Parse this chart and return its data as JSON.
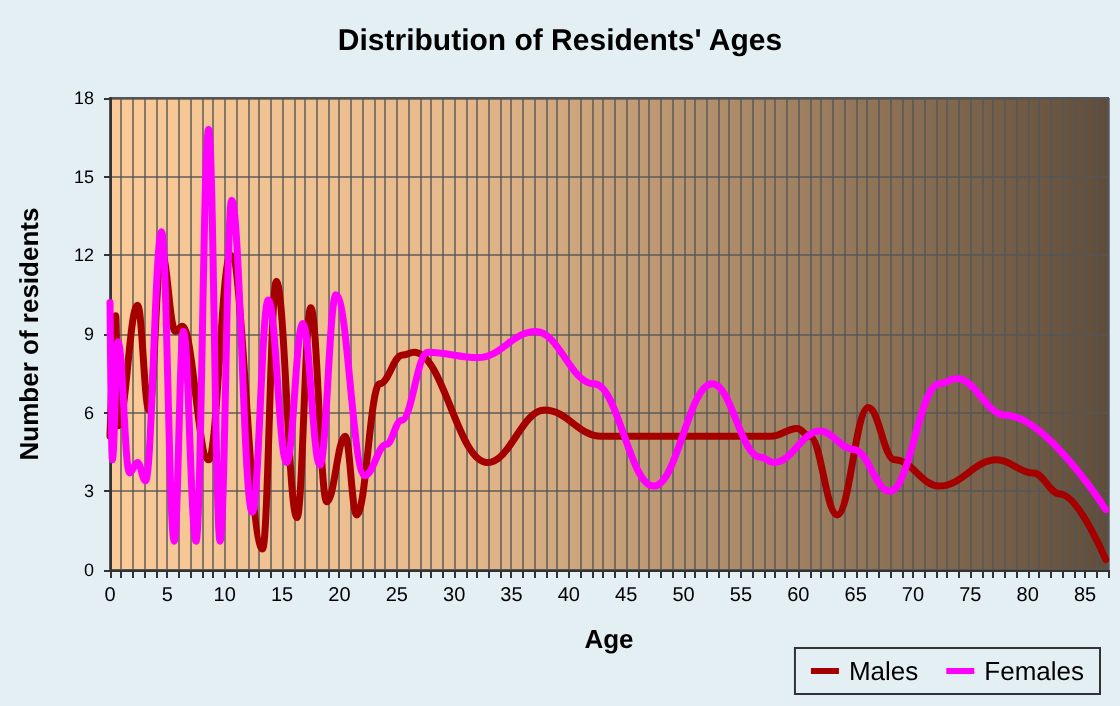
{
  "chart_data": {
    "type": "line",
    "title": "Distribution of Residents' Ages",
    "xlabel": "Age",
    "ylabel": "Number of residents",
    "xlim": [
      0,
      87
    ],
    "xticks": [
      0,
      5,
      10,
      15,
      20,
      25,
      30,
      35,
      40,
      45,
      50,
      55,
      60,
      65,
      70,
      75,
      80,
      85
    ],
    "ylim": [
      0,
      18
    ],
    "yticks": [
      0,
      3,
      6,
      9,
      12,
      15,
      18
    ],
    "grid": true,
    "legend": "bottom right",
    "marker": "none",
    "line_style": "solid",
    "series": [
      {
        "name": "Males",
        "color": "#a50000",
        "x": [
          0,
          0.5,
          0.7,
          2.4,
          3.4,
          4.5,
          5.7,
          6.3,
          8.6,
          10.5,
          13.3,
          14.5,
          16.3,
          17.5,
          18.9,
          20.5,
          21.5,
          23.5,
          25.5,
          26.5,
          32.9,
          37.9,
          42.8,
          47.9,
          56.7,
          57.6,
          59.9,
          61,
          63.4,
          66.1,
          68.4,
          72.3,
          77.3,
          80.5,
          82.8,
          86.8
        ],
        "values": [
          5.1,
          9.7,
          5.5,
          10.1,
          6.1,
          12.1,
          9.1,
          9.3,
          4.2,
          12,
          0.8,
          11,
          2,
          10,
          2.6,
          5.1,
          2.1,
          7.1,
          8.2,
          8.3,
          4.1,
          6.1,
          5.1,
          5.1,
          5.1,
          5.1,
          5.4,
          5.1,
          2.1,
          6.2,
          4.2,
          3.2,
          4.2,
          3.7,
          2.9,
          0.4
        ]
      },
      {
        "name": "Females",
        "color": "#ff00ff",
        "x": [
          0,
          0.2,
          0.7,
          1.7,
          2.4,
          3.1,
          4.5,
          5.6,
          6.4,
          7.5,
          8.6,
          9.6,
          10.6,
          12.4,
          13.8,
          15.4,
          16.8,
          18.3,
          19.7,
          22.2,
          24.1,
          25.4,
          27.7,
          32.1,
          37.1,
          42.2,
          47.4,
          52.5,
          56.7,
          57.9,
          61.9,
          64.8,
          68,
          72.3,
          73.8,
          78.1,
          86.8
        ],
        "values": [
          10.2,
          4.2,
          8.7,
          3.7,
          4.1,
          3.4,
          12.9,
          1.1,
          9.1,
          1.1,
          16.8,
          1.1,
          14.1,
          2.2,
          10.3,
          4.1,
          9.4,
          4,
          10.5,
          3.6,
          4.8,
          5.7,
          8.3,
          8.1,
          9.1,
          7.1,
          3.2,
          7.1,
          4.3,
          4.1,
          5.3,
          4.6,
          3,
          7.1,
          7.3,
          5.9,
          2.3
        ]
      }
    ]
  }
}
